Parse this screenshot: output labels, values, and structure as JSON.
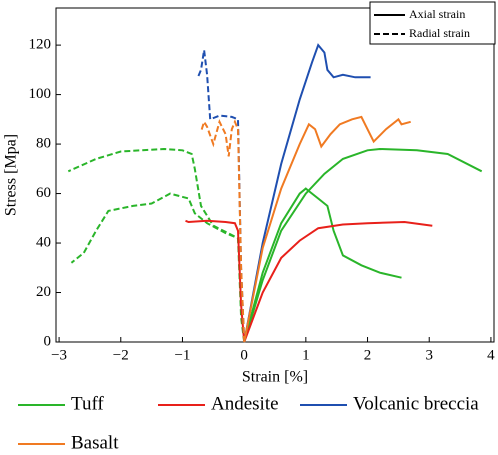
{
  "chart_data": {
    "type": "line",
    "xlabel": "Strain [%]",
    "ylabel": "Stress [Mpa]",
    "xlim": [
      -3.05,
      4.05
    ],
    "ylim": [
      0,
      135
    ],
    "xticks": [
      {
        "value": -3,
        "label": "−3"
      },
      {
        "value": -2,
        "label": "−2"
      },
      {
        "value": -1,
        "label": "−1"
      },
      0,
      1,
      2,
      3,
      4
    ],
    "yticks": [
      0,
      20,
      40,
      60,
      80,
      100,
      120
    ],
    "line_styles": [
      {
        "label": "Axial strain",
        "dash": "solid"
      },
      {
        "label": "Radial strain",
        "dash": "dashed"
      }
    ],
    "series": [
      {
        "name": "Tuff",
        "color": "#2ab52a",
        "curves": [
          {
            "dash": "solid",
            "x": [
              0,
              0.3,
              0.6,
              1.0,
              1.3,
              1.6,
              2.0,
              2.2,
              2.8,
              3.3,
              3.85
            ],
            "y": [
              0,
              25,
              45,
              60,
              68,
              74,
              77.5,
              78,
              77.5,
              76,
              69
            ]
          },
          {
            "dash": "solid",
            "x": [
              0,
              0.3,
              0.6,
              0.9,
              1.0,
              1.05,
              1.2,
              1.35,
              1.45,
              1.6,
              1.9,
              2.2,
              2.55
            ],
            "y": [
              0,
              28,
              48,
              60,
              62,
              61,
              58,
              55,
              45,
              35,
              31,
              28,
              26
            ]
          },
          {
            "dash": "dashed",
            "x": [
              0,
              -0.05,
              -0.1,
              -0.3,
              -0.6,
              -0.8,
              -0.9,
              -1.2,
              -1.5,
              -1.8,
              -2.2,
              -2.4,
              -2.6,
              -2.8
            ],
            "y": [
              0,
              10,
              42,
              44,
              48,
              52,
              58,
              60,
              56,
              55,
              53,
              45,
              36,
              32
            ]
          },
          {
            "dash": "dashed",
            "x": [
              0,
              -0.1,
              -0.5,
              -0.7,
              -0.8,
              -0.85,
              -1.0,
              -1.3,
              -2.0,
              -2.4,
              -2.85
            ],
            "y": [
              0,
              42,
              47,
              55,
              70,
              76,
              77.5,
              78,
              77,
              74,
              69
            ]
          }
        ]
      },
      {
        "name": "Andesite",
        "color": "#e8201a",
        "curves": [
          {
            "dash": "solid",
            "x": [
              0,
              0.3,
              0.6,
              0.9,
              1.2,
              1.6,
              2.0,
              2.6,
              3.05
            ],
            "y": [
              0,
              20,
              34,
              41,
              46,
              47.5,
              48,
              48.5,
              47
            ]
          },
          {
            "dash": "solid",
            "x": [
              0,
              -0.05,
              -0.1,
              -0.15,
              -0.3,
              -0.6,
              -0.9,
              -0.95
            ],
            "y": [
              0,
              15,
              45,
              48,
              48.5,
              49,
              48.5,
              49
            ]
          }
        ]
      },
      {
        "name": "Volcanic breccia",
        "color": "#1f4fb0",
        "curves": [
          {
            "dash": "solid",
            "x": [
              0,
              0.3,
              0.6,
              0.9,
              1.1,
              1.2,
              1.3,
              1.35,
              1.45,
              1.6,
              1.8,
              2.05
            ],
            "y": [
              0,
              40,
              72,
              98,
              113,
              120,
              117,
              110,
              107,
              108,
              107,
              107
            ]
          },
          {
            "dash": "dashed",
            "x": [
              0,
              -0.05,
              -0.1,
              -0.2,
              -0.4,
              -0.55,
              -0.6,
              -0.65,
              -0.7,
              -0.75
            ],
            "y": [
              0,
              30,
              90,
              91,
              91.5,
              90,
              108,
              118,
              110,
              107
            ]
          }
        ]
      },
      {
        "name": "Basalt",
        "color": "#f07a22",
        "curves": [
          {
            "dash": "solid",
            "x": [
              0,
              0.3,
              0.6,
              0.9,
              1.05,
              1.15,
              1.25,
              1.4,
              1.55,
              1.75,
              1.9,
              2.0,
              2.1,
              2.3,
              2.5,
              2.55,
              2.7
            ],
            "y": [
              0,
              38,
              62,
              80,
              88,
              86,
              79,
              84,
              88,
              90,
              91,
              86,
              81,
              86,
              90,
              88,
              89
            ]
          },
          {
            "dash": "dashed",
            "x": [
              0,
              -0.05,
              -0.1,
              -0.15,
              -0.2,
              -0.25,
              -0.3,
              -0.4,
              -0.5,
              -0.6,
              -0.65,
              -0.7
            ],
            "y": [
              0,
              30,
              86,
              89,
              86,
              75,
              84,
              89,
              80,
              87,
              89,
              85
            ]
          }
        ]
      }
    ]
  }
}
